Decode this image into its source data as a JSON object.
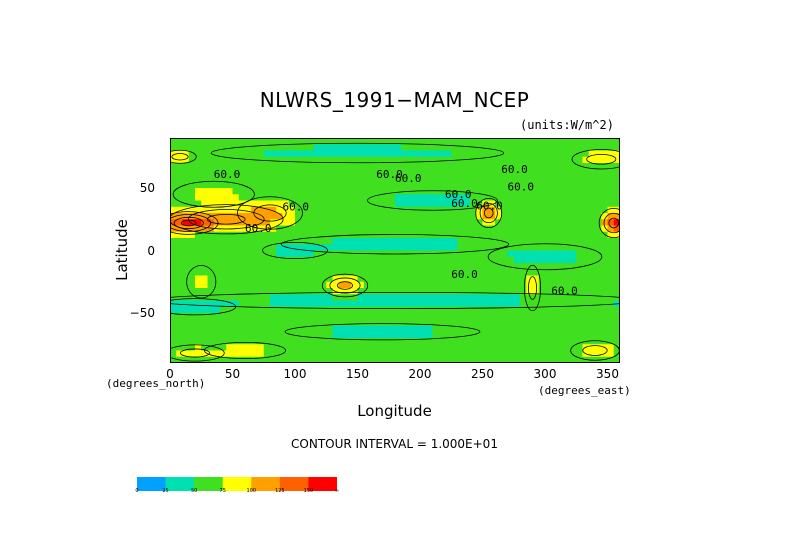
{
  "chart_data": {
    "type": "heatmap",
    "title": "NLWRS_1991−MAM_NCEP",
    "units_note": "(units:W/m^2)",
    "xlabel": "Longitude",
    "ylabel": "Latitude",
    "x_units_note": "(degrees_east)",
    "y_units_note": "(degrees_north)",
    "xlim": [
      0,
      360
    ],
    "ylim": [
      -90,
      90
    ],
    "x_ticks": [
      "0",
      "50",
      "100",
      "150",
      "200",
      "250",
      "300",
      "350"
    ],
    "y_ticks": [
      "50",
      "0",
      "−50"
    ],
    "contour_interval_label": "CONTOUR INTERVAL = 1.000E+01",
    "contour_labels": [
      "60.0",
      "60.0",
      "60.0",
      "60.0",
      "60.0",
      "60.0",
      "60.0",
      "60.0",
      "60.0",
      "60.0",
      "60.0",
      "60.0"
    ],
    "colorbar": {
      "levels": [
        "0",
        "25",
        "50",
        "75",
        "100",
        "125",
        "150",
        "∞"
      ],
      "colors": [
        "#00a0ff",
        "#00e0b0",
        "#40e020",
        "#ffff00",
        "#ffa000",
        "#ff6000",
        "#ff0000"
      ]
    },
    "background_field": 60,
    "regions": [
      {
        "lon": 45,
        "lat": 25,
        "rlon": 35,
        "rlat": 9,
        "value": 110
      },
      {
        "lon": 15,
        "lat": 22,
        "rlon": 18,
        "rlat": 7,
        "value": 135
      },
      {
        "lon": 80,
        "lat": 30,
        "rlon": 20,
        "rlat": 10,
        "value": 100
      },
      {
        "lon": 35,
        "lat": 45,
        "rlon": 25,
        "rlat": 8,
        "value": 85
      },
      {
        "lon": 140,
        "lat": -28,
        "rlon": 14,
        "rlat": 7,
        "value": 110
      },
      {
        "lon": 255,
        "lat": 30,
        "rlon": 8,
        "rlat": 9,
        "value": 115
      },
      {
        "lon": 355,
        "lat": 22,
        "rlon": 9,
        "rlat": 9,
        "value": 120
      },
      {
        "lon": 290,
        "lat": -30,
        "rlon": 5,
        "rlat": 14,
        "value": 95
      },
      {
        "lon": 25,
        "lat": -25,
        "rlon": 9,
        "rlat": 10,
        "value": 85
      },
      {
        "lon": 340,
        "lat": -80,
        "rlon": 15,
        "rlat": 6,
        "value": 95
      },
      {
        "lon": 60,
        "lat": -80,
        "rlon": 25,
        "rlat": 5,
        "value": 85
      },
      {
        "lon": 345,
        "lat": 73,
        "rlon": 18,
        "rlat": 6,
        "value": 95
      },
      {
        "lon": 8,
        "lat": 75,
        "rlon": 10,
        "rlat": 4,
        "value": 90
      },
      {
        "lon": 20,
        "lat": -82,
        "rlon": 18,
        "rlat": 5,
        "value": 90
      },
      {
        "lon": 180,
        "lat": 5,
        "rlon": 70,
        "rlat": 6,
        "value": 40
      },
      {
        "lon": 180,
        "lat": -40,
        "rlon": 150,
        "rlat": 5,
        "value": 40
      },
      {
        "lon": 150,
        "lat": 78,
        "rlon": 90,
        "rlat": 6,
        "value": 40
      },
      {
        "lon": 210,
        "lat": 40,
        "rlon": 40,
        "rlat": 6,
        "value": 40
      },
      {
        "lon": 300,
        "lat": -5,
        "rlon": 35,
        "rlat": 8,
        "value": 40
      },
      {
        "lon": 170,
        "lat": -65,
        "rlon": 60,
        "rlat": 5,
        "value": 40
      },
      {
        "lon": 20,
        "lat": -45,
        "rlon": 25,
        "rlat": 5,
        "value": 40
      },
      {
        "lon": 100,
        "lat": 0,
        "rlon": 20,
        "rlat": 5,
        "value": 40
      }
    ]
  }
}
